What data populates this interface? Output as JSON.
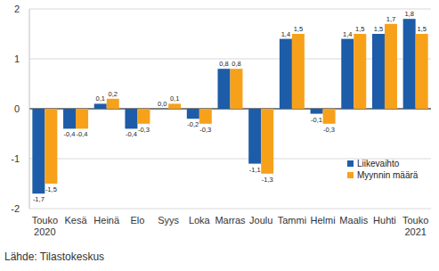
{
  "chart_data": {
    "type": "bar",
    "categories": [
      "Touko\n2020",
      "Kesä",
      "Heinä",
      "Elo",
      "Syys",
      "Loka",
      "Marras",
      "Joulu",
      "Tammi",
      "Helmi",
      "Maalis",
      "Huhti",
      "Touko\n2021"
    ],
    "series": [
      {
        "name": "Liikevaihto",
        "color": "#1d5ca8",
        "values": [
          -1.7,
          -0.4,
          0.1,
          -0.4,
          0.0,
          -0.2,
          0.8,
          -1.1,
          1.4,
          -0.1,
          1.4,
          1.5,
          1.8
        ],
        "value_labels": [
          "-1,7",
          "-0,4",
          "0,1",
          "-0,4",
          "0,0",
          "-0,2",
          "0,8",
          "-1,1",
          "1,4",
          "-0,1",
          "1,4",
          "1,5",
          "1,8"
        ]
      },
      {
        "name": "Myynnin määrä",
        "color": "#f7a11a",
        "values": [
          -1.5,
          -0.4,
          0.2,
          -0.3,
          0.1,
          -0.3,
          0.8,
          -1.3,
          1.5,
          -0.3,
          1.5,
          1.7,
          1.5
        ],
        "value_labels": [
          "-1,5",
          "-0,4",
          "0,2",
          "-0,3",
          "0,1",
          "-0,3",
          "0,8",
          "-1,3",
          "1,5",
          "-0,3",
          "1,5",
          "1,7",
          "1,5"
        ]
      }
    ],
    "ylim": [
      -2,
      2
    ],
    "yticks": [
      -2,
      -1,
      0,
      1,
      2
    ],
    "grid": true,
    "legend": "lower right",
    "data_labels": true,
    "source": "Lähde: Tilastokeskus"
  }
}
